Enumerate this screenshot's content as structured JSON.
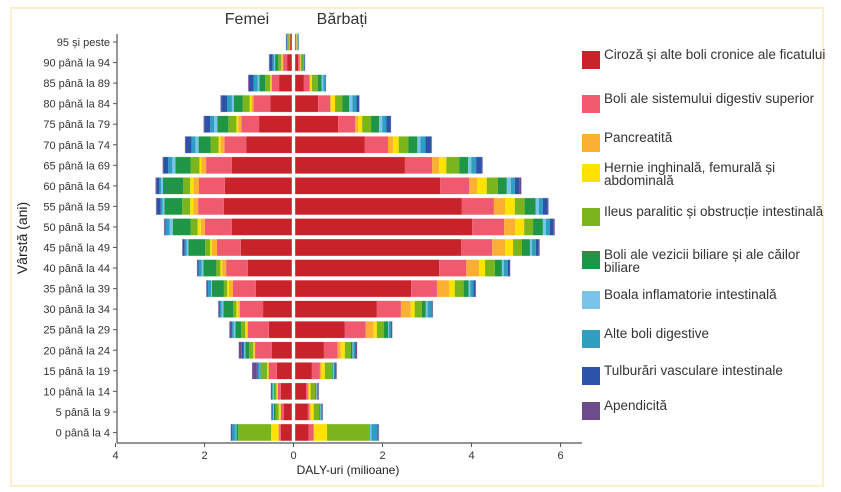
{
  "chart_data": {
    "type": "bar",
    "subtype": "population-pyramid-stacked",
    "headers": {
      "left": "Femei",
      "right": "Bărbați"
    },
    "xlabel": "DALY-uri (milioane)",
    "ylabel": "Vârstă (ani)",
    "xlim_left": 4,
    "xlim_right": 6.5,
    "x_ticks": [
      {
        "value": -4,
        "label": "4"
      },
      {
        "value": -2,
        "label": "2"
      },
      {
        "value": 0,
        "label": "0"
      },
      {
        "value": 2,
        "label": "2"
      },
      {
        "value": 4,
        "label": "4"
      },
      {
        "value": 6,
        "label": "6"
      }
    ],
    "grid": false,
    "legend_position": "right",
    "categories": [
      "95 și peste",
      "90 până la 94",
      "85 până la 89",
      "80 până la 84",
      "75 până la 79",
      "70 până la 74",
      "65 până la 69",
      "60 până la 64",
      "55 până la 59",
      "50 până la 54",
      "45 până la 49",
      "40 până la 44",
      "35 până la 39",
      "30 până la 34",
      "25 până la 29",
      "20 până la 24",
      "15 până la 19",
      "10 până la 14",
      "5 până la 9",
      "0 până la 4"
    ],
    "series": [
      {
        "name": "Ciroză și alte boli cronice ale ficatului",
        "color": "#c8232a",
        "female": [
          0.04,
          0.11,
          0.29,
          0.49,
          0.74,
          1.03,
          1.35,
          1.51,
          1.53,
          1.35,
          1.15,
          0.99,
          0.81,
          0.65,
          0.52,
          0.45,
          0.34,
          0.25,
          0.18,
          0.25
        ],
        "male": [
          0.02,
          0.07,
          0.2,
          0.52,
          0.97,
          1.57,
          2.47,
          3.26,
          3.75,
          3.98,
          3.73,
          3.24,
          2.61,
          1.84,
          1.12,
          0.65,
          0.38,
          0.25,
          0.29,
          0.31
        ]
      },
      {
        "name": "Boli ale sistemului digestiv superior",
        "color": "#f05a6e",
        "female": [
          0.02,
          0.09,
          0.16,
          0.38,
          0.4,
          0.49,
          0.58,
          0.58,
          0.58,
          0.61,
          0.54,
          0.49,
          0.52,
          0.52,
          0.47,
          0.38,
          0.18,
          0.07,
          0.07,
          0.04
        ],
        "male": [
          0.01,
          0.04,
          0.13,
          0.27,
          0.38,
          0.52,
          0.61,
          0.65,
          0.72,
          0.72,
          0.7,
          0.61,
          0.58,
          0.54,
          0.47,
          0.31,
          0.18,
          0.04,
          0.04,
          0.11
        ]
      },
      {
        "name": "Pancreatită",
        "color": "#fbb034",
        "female": [
          0.0,
          0.02,
          0.02,
          0.04,
          0.07,
          0.09,
          0.11,
          0.13,
          0.11,
          0.09,
          0.11,
          0.09,
          0.09,
          0.04,
          0.02,
          0.02,
          0.02,
          0.01,
          0.01,
          0.02
        ],
        "male": [
          0.0,
          0.01,
          0.01,
          0.02,
          0.07,
          0.11,
          0.16,
          0.18,
          0.25,
          0.25,
          0.29,
          0.29,
          0.27,
          0.22,
          0.18,
          0.07,
          0.04,
          0.02,
          0.02,
          0.01
        ]
      },
      {
        "name": "Hernie inghinală, femurală și abdominală",
        "color": "#ffe200",
        "female": [
          0.01,
          0.02,
          0.02,
          0.04,
          0.04,
          0.04,
          0.04,
          0.07,
          0.07,
          0.07,
          0.04,
          0.04,
          0.04,
          0.04,
          0.04,
          0.02,
          0.02,
          0.02,
          0.04,
          0.16
        ],
        "male": [
          0.01,
          0.01,
          0.04,
          0.09,
          0.09,
          0.13,
          0.16,
          0.22,
          0.22,
          0.2,
          0.18,
          0.13,
          0.13,
          0.09,
          0.07,
          0.09,
          0.07,
          0.04,
          0.07,
          0.29
        ]
      },
      {
        "name": "Ileus paralitic și obstrucție intestinală",
        "color": "#7ab51d",
        "female": [
          0.02,
          0.07,
          0.11,
          0.16,
          0.18,
          0.18,
          0.2,
          0.16,
          0.18,
          0.16,
          0.11,
          0.09,
          0.07,
          0.07,
          0.09,
          0.09,
          0.13,
          0.04,
          0.07,
          0.74
        ],
        "male": [
          0.01,
          0.04,
          0.13,
          0.16,
          0.2,
          0.22,
          0.29,
          0.25,
          0.22,
          0.2,
          0.2,
          0.22,
          0.2,
          0.16,
          0.16,
          0.13,
          0.16,
          0.11,
          0.13,
          0.94
        ]
      },
      {
        "name": "Boli ale vezicii biliare și ale căilor biliare",
        "color": "#1e9645",
        "female": [
          0.01,
          0.07,
          0.13,
          0.2,
          0.25,
          0.27,
          0.34,
          0.45,
          0.4,
          0.4,
          0.38,
          0.29,
          0.27,
          0.22,
          0.13,
          0.09,
          0.02,
          0.02,
          0.04,
          0.04
        ],
        "male": [
          0.01,
          0.02,
          0.09,
          0.16,
          0.18,
          0.2,
          0.2,
          0.2,
          0.25,
          0.22,
          0.18,
          0.16,
          0.11,
          0.09,
          0.09,
          0.04,
          0.02,
          0.02,
          0.02,
          0.02
        ]
      },
      {
        "name": "Boala inflamatorie intestinală",
        "color": "#7ac3ea",
        "female": [
          0.01,
          0.02,
          0.04,
          0.04,
          0.07,
          0.07,
          0.07,
          0.04,
          0.04,
          0.07,
          0.04,
          0.04,
          0.02,
          0.04,
          0.04,
          0.02,
          0.02,
          0.02,
          0.01,
          0.02
        ],
        "male": [
          0.01,
          0.01,
          0.04,
          0.07,
          0.07,
          0.07,
          0.07,
          0.09,
          0.07,
          0.07,
          0.04,
          0.04,
          0.04,
          0.04,
          0.02,
          0.02,
          0.02,
          0.01,
          0.01,
          0.04
        ]
      },
      {
        "name": "Alte boli digestive",
        "color": "#2e9fc0",
        "female": [
          0.01,
          0.04,
          0.09,
          0.11,
          0.09,
          0.09,
          0.09,
          0.04,
          0.04,
          0.09,
          0.04,
          0.07,
          0.07,
          0.04,
          0.04,
          0.02,
          0.04,
          0.02,
          0.02,
          0.07
        ],
        "male": [
          0.01,
          0.01,
          0.04,
          0.09,
          0.09,
          0.11,
          0.11,
          0.09,
          0.09,
          0.09,
          0.09,
          0.09,
          0.07,
          0.09,
          0.04,
          0.04,
          0.02,
          0.02,
          0.02,
          0.13
        ]
      },
      {
        "name": "Tulburări vasculare intestinale",
        "color": "#2b54a8",
        "female": [
          0.02,
          0.07,
          0.11,
          0.13,
          0.13,
          0.13,
          0.11,
          0.07,
          0.09,
          0.02,
          0.04,
          0.02,
          0.02,
          0.02,
          0.02,
          0.04,
          0.02,
          0.01,
          0.01,
          0.02
        ],
        "male": [
          0.01,
          0.02,
          0.02,
          0.07,
          0.11,
          0.13,
          0.13,
          0.11,
          0.11,
          0.07,
          0.07,
          0.04,
          0.04,
          0.02,
          0.02,
          0.01,
          0.01,
          0.01,
          0.01,
          0.02
        ]
      },
      {
        "name": "Apendicită",
        "color": "#6d4c8e",
        "female": [
          0.0,
          0.01,
          0.02,
          0.02,
          0.02,
          0.02,
          0.02,
          0.02,
          0.02,
          0.02,
          0.02,
          0.02,
          0.02,
          0.02,
          0.04,
          0.07,
          0.11,
          0.02,
          0.02,
          0.02
        ],
        "male": [
          0.0,
          0.0,
          0.0,
          0.0,
          0.0,
          0.02,
          0.02,
          0.04,
          0.02,
          0.04,
          0.02,
          0.02,
          0.02,
          0.01,
          0.02,
          0.04,
          0.04,
          0.02,
          0.02,
          0.02
        ]
      }
    ]
  }
}
